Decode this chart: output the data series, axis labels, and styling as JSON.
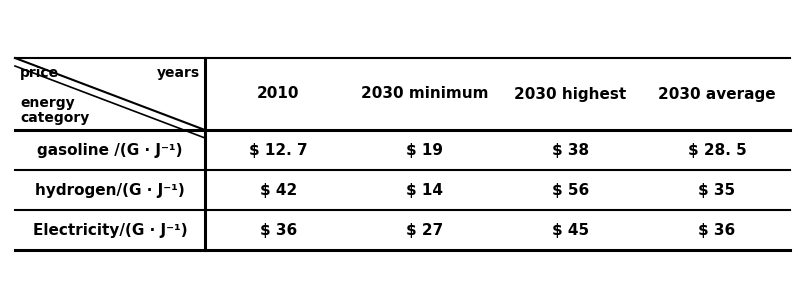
{
  "col_headers": [
    "2010",
    "2030 minimum",
    "2030 highest",
    "2030 average"
  ],
  "row_headers": [
    "gasoline /(G · J⁻¹)",
    "hydrogen/(G · J⁻¹)",
    "Electricity/(G · J⁻¹)"
  ],
  "cell_data": [
    [
      "$ 12. 7",
      "$ 19",
      "$ 38",
      "$ 28. 5"
    ],
    [
      "$ 42",
      "$ 14",
      "$ 56",
      "$ 35"
    ],
    [
      "$ 36",
      "$ 27",
      "$ 45",
      "$ 36"
    ]
  ],
  "corner_label_price": "price",
  "corner_label_years": "years",
  "corner_label_energy": "energy",
  "corner_label_category": "category",
  "bg_color": "#ffffff",
  "text_color": "#000000",
  "line_color": "#000000",
  "fontsize": 11,
  "header_fontsize": 11
}
